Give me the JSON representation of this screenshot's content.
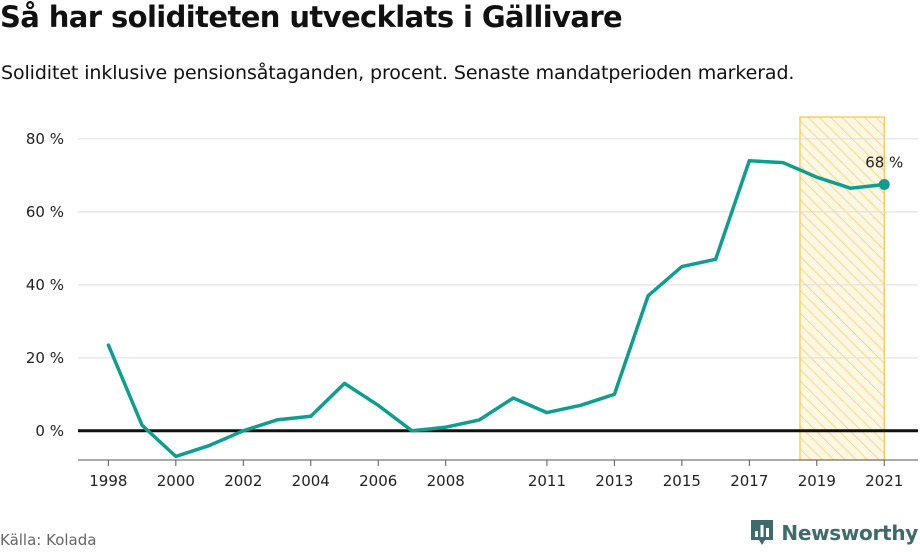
{
  "header": {
    "title": "Så har soliditeten utvecklats i Gällivare",
    "subtitle": "Soliditet inklusive pensionsåtaganden, procent. Senaste mandatperioden markerad."
  },
  "footer": {
    "source": "Källa: Kolada",
    "brand": "Newsworthy"
  },
  "colors": {
    "line": "#0e9e8e",
    "highlight_fill": "#fdf0c6",
    "highlight_stroke": "#f5c543",
    "zero_line": "#111111",
    "grid": "#dddddd",
    "brand": "#3d6b69"
  },
  "icons": {
    "brand_logo": "bar-chart-icon"
  },
  "chart_data": {
    "type": "line",
    "title": "Så har soliditeten utvecklats i Gällivare",
    "subtitle": "Soliditet inklusive pensionsåtaganden, procent. Senaste mandatperioden markerad.",
    "xlabel": "",
    "ylabel": "",
    "x": [
      1998,
      1999,
      2000,
      2001,
      2002,
      2003,
      2004,
      2005,
      2006,
      2007,
      2008,
      2009,
      2010,
      2011,
      2012,
      2013,
      2014,
      2015,
      2016,
      2017,
      2018,
      2019,
      2020,
      2021
    ],
    "series": [
      {
        "values": [
          23.5,
          1.5,
          -7,
          -4,
          0,
          3,
          4,
          13,
          7,
          0,
          1,
          3,
          9,
          5,
          7,
          10,
          37,
          45,
          47,
          74,
          73.5,
          69.5,
          66.5,
          67.5
        ]
      }
    ],
    "xticks": [
      1998,
      2000,
      2002,
      2004,
      2006,
      2008,
      2011,
      2013,
      2015,
      2017,
      2019,
      2021
    ],
    "yticks": [
      0,
      20,
      40,
      60,
      80
    ],
    "ytick_labels": [
      "0 %",
      "20 %",
      "40 %",
      "60 %",
      "80 %"
    ],
    "ylim": [
      -8,
      86
    ],
    "xlim": [
      1997.1,
      2022
    ],
    "highlight_range": [
      2018.5,
      2021
    ],
    "end_label": "68 %",
    "grid": true,
    "legend": "none"
  }
}
